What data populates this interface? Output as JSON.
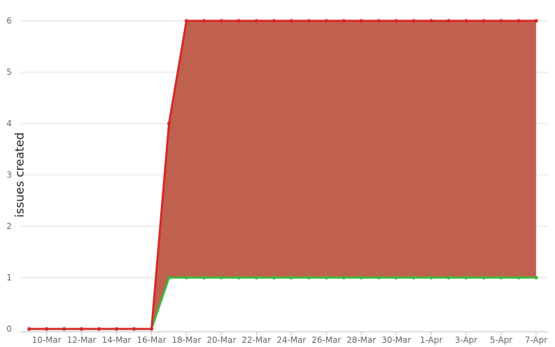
{
  "chart_data": {
    "type": "area",
    "title": "",
    "xlabel": "",
    "ylabel": "issues created",
    "ylim": [
      0,
      6
    ],
    "y_ticks": [
      0,
      1,
      2,
      3,
      4,
      5,
      6
    ],
    "grid": true,
    "legend": "none",
    "x": [
      "9-Mar",
      "10-Mar",
      "11-Mar",
      "12-Mar",
      "13-Mar",
      "14-Mar",
      "15-Mar",
      "16-Mar",
      "17-Mar",
      "18-Mar",
      "19-Mar",
      "20-Mar",
      "21-Mar",
      "22-Mar",
      "23-Mar",
      "24-Mar",
      "25-Mar",
      "26-Mar",
      "27-Mar",
      "28-Mar",
      "29-Mar",
      "30-Mar",
      "31-Mar",
      "1-Apr",
      "2-Apr",
      "3-Apr",
      "4-Apr",
      "5-Apr",
      "6-Apr",
      "7-Apr"
    ],
    "x_tick_labels": [
      "10-Mar",
      "12-Mar",
      "14-Mar",
      "16-Mar",
      "18-Mar",
      "20-Mar",
      "22-Mar",
      "24-Mar",
      "26-Mar",
      "28-Mar",
      "30-Mar",
      "1-Apr",
      "3-Apr",
      "5-Apr",
      "7-Apr"
    ],
    "series": [
      {
        "color": "#d62728",
        "values": [
          0,
          0,
          0,
          0,
          0,
          0,
          0,
          0,
          4,
          6,
          6,
          6,
          6,
          6,
          6,
          6,
          6,
          6,
          6,
          6,
          6,
          6,
          6,
          6,
          6,
          6,
          6,
          6,
          6,
          6
        ]
      },
      {
        "color": "#3db83d",
        "values": [
          0,
          0,
          0,
          0,
          0,
          0,
          0,
          0,
          1,
          1,
          1,
          1,
          1,
          1,
          1,
          1,
          1,
          1,
          1,
          1,
          1,
          1,
          1,
          1,
          1,
          1,
          1,
          1,
          1,
          1
        ]
      }
    ],
    "fill_color": "#c0604e"
  }
}
